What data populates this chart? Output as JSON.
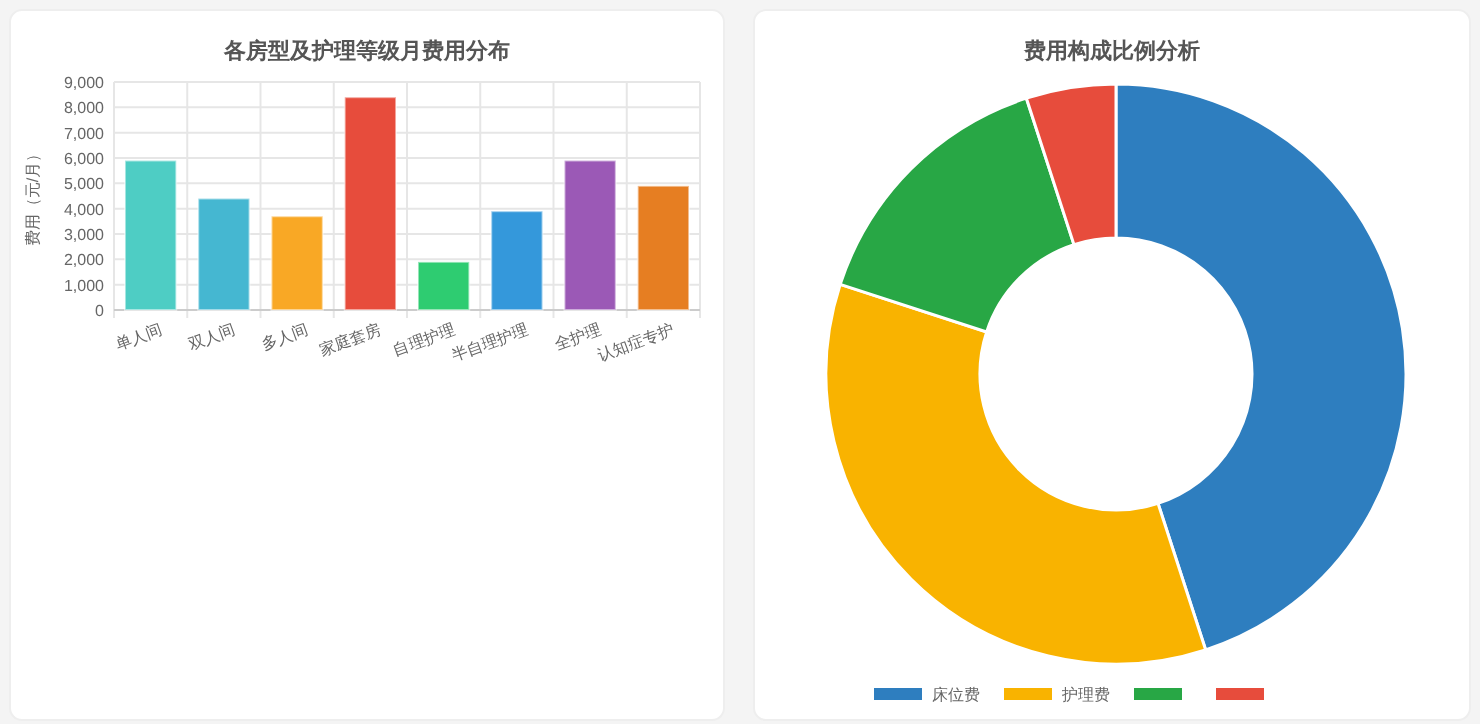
{
  "chart_data": [
    {
      "type": "bar",
      "title": "各房型及护理等级月费用分布",
      "ylabel": "费用（元/月）",
      "categories": [
        "单人间",
        "双人间",
        "多人间",
        "家庭套房",
        "自理护理",
        "半自理护理",
        "全护理",
        "认知症专护"
      ],
      "values": [
        5900,
        4400,
        3700,
        8400,
        1900,
        3900,
        5900,
        4900
      ],
      "colors": [
        "#4ecdc4",
        "#45b7d1",
        "#f9a825",
        "#e74c3c",
        "#2ecc71",
        "#3498db",
        "#9b59b6",
        "#e67e22"
      ],
      "ylim": [
        0,
        9000
      ],
      "yticks": [
        0,
        {
          "value": 1000,
          "label": "1,000"
        },
        {
          "value": 2000,
          "label": "2,000"
        },
        {
          "value": 3000,
          "label": "3,000"
        },
        {
          "value": 4000,
          "label": "4,000"
        },
        {
          "value": 5000,
          "label": "5,000"
        },
        {
          "value": 6000,
          "label": "6,000"
        },
        {
          "value": 7000,
          "label": "7,000"
        },
        {
          "value": 8000,
          "label": "8,000"
        },
        {
          "value": 9000,
          "label": "9,000"
        }
      ],
      "grid": true
    },
    {
      "type": "donut",
      "title": "费用构成比例分析",
      "categories": [
        "床位费",
        "护理费",
        null,
        null
      ],
      "values": [
        45,
        35,
        15,
        5
      ],
      "colors": [
        "#2e7ebf",
        "#f9b300",
        "#28a745",
        "#e74c3c"
      ],
      "legend": "bottom"
    }
  ]
}
